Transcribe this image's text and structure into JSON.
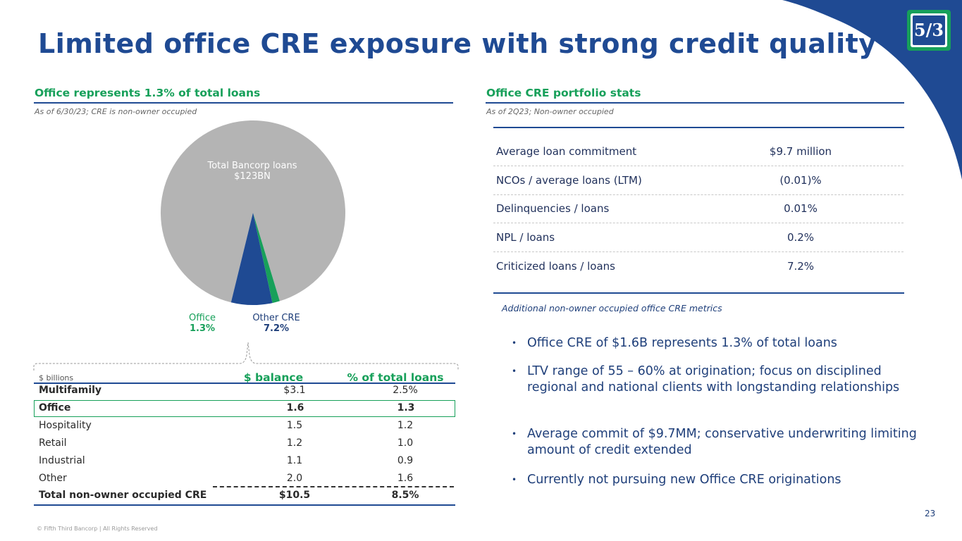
{
  "title": "Limited office CRE exposure with strong credit quality",
  "left": {
    "heading": "Office represents 1.3% of total loans",
    "note": "As of 6/30/23; CRE is non-owner occupied",
    "pie_center_label_1": "Total Bancorp loans",
    "pie_center_label_2": "$123BN",
    "office_label": "Office",
    "office_value": "1.3%",
    "other_cre_label": "Other CRE",
    "other_cre_value": "7.2%"
  },
  "chart_data": {
    "type": "pie",
    "slices": [
      {
        "label": "Office",
        "value": 1.3,
        "color": "#17a05a"
      },
      {
        "label": "Other CRE",
        "value": 7.2,
        "color": "#1f4a93"
      },
      {
        "label": "Total Bancorp loans",
        "value": 91.5,
        "color": "#b4b4b4"
      }
    ]
  },
  "table": {
    "unit_label": "$ billions",
    "col_balance": "$ balance",
    "col_pct": "% of total loans",
    "rows": [
      {
        "name": "Multifamily",
        "balance": "$3.1",
        "pct": "2.5%"
      },
      {
        "name": "Office",
        "balance": "1.6",
        "pct": "1.3"
      },
      {
        "name": "Hospitality",
        "balance": "1.5",
        "pct": "1.2"
      },
      {
        "name": "Retail",
        "balance": "1.2",
        "pct": "1.0"
      },
      {
        "name": "Industrial",
        "balance": "1.1",
        "pct": "0.9"
      },
      {
        "name": "Other",
        "balance": "2.0",
        "pct": "1.6"
      }
    ],
    "total": {
      "name": "Total non-owner occupied CRE",
      "balance": "$10.5",
      "pct": "8.5%"
    }
  },
  "right": {
    "heading": "Office CRE portfolio stats",
    "note": "As of 2Q23; Non-owner occupied",
    "stats": [
      {
        "label": "Average loan commitment",
        "value": "$9.7 million"
      },
      {
        "label": "NCOs / average loans (LTM)",
        "value": "(0.01)%"
      },
      {
        "label": "Delinquencies / loans",
        "value": "0.01%"
      },
      {
        "label": "NPL / loans",
        "value": "0.2%"
      },
      {
        "label": "Criticized loans / loans",
        "value": "7.2%"
      }
    ],
    "additional_note": "Additional non-owner occupied office CRE metrics",
    "bullets": [
      "Office CRE of $1.6B represents 1.3% of total loans",
      "LTV range of 55 – 60% at origination; focus on disciplined regional and national clients with longstanding relationships",
      "Average commit of $9.7MM; conservative underwriting limiting amount of credit extended",
      "Currently not pursuing new Office CRE originations"
    ]
  },
  "logo_text": "5/3",
  "page_number": "23",
  "footer": "© Fifth Third Bancorp | All Rights Reserved",
  "colors": {
    "navy": "#1f4a93",
    "green": "#17a05a",
    "gray": "#b4b4b4"
  }
}
